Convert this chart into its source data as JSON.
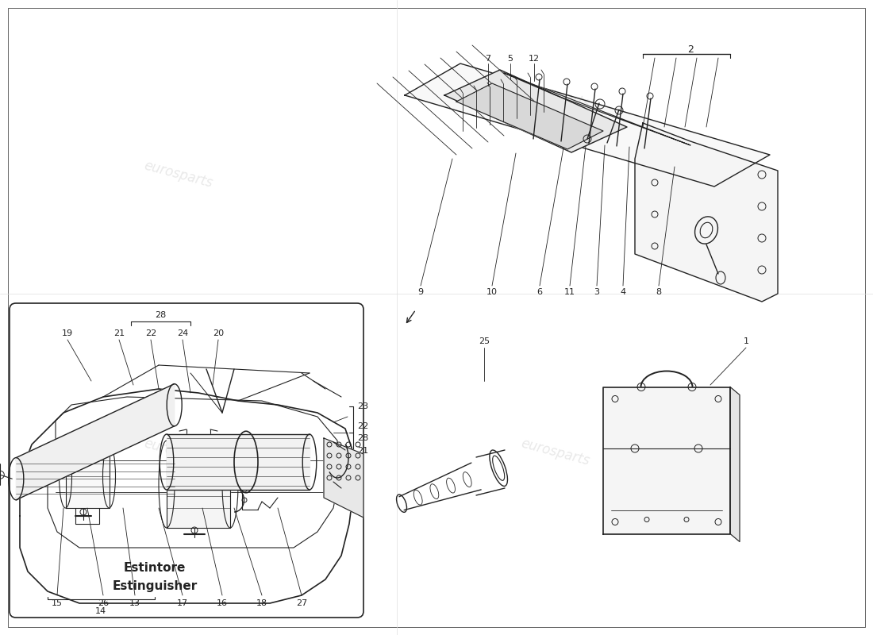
{
  "background_color": "#ffffff",
  "line_color": "#222222",
  "page_width": 11.0,
  "page_height": 8.0,
  "dpi": 100,
  "watermark_text": "eurosparts",
  "watermark_color": "#c0c0c0",
  "watermark_alpha": 0.35,
  "title_estintore": "Estintore",
  "title_estinguisher": "Estinguisher",
  "labels_top_left": [
    "15",
    "26",
    "13",
    "17",
    "16",
    "18",
    "27",
    "14"
  ],
  "labels_top_right_top": [
    "7",
    "5",
    "12",
    "2"
  ],
  "labels_top_right_bot": [
    "9",
    "10",
    "6",
    "11",
    "3",
    "4",
    "8"
  ],
  "labels_bot_left_top": [
    "28",
    "19",
    "21",
    "22",
    "24",
    "20"
  ],
  "labels_bot_left_right": [
    "23",
    "22",
    "28",
    "21"
  ],
  "labels_bot_right": [
    "25",
    "1"
  ]
}
